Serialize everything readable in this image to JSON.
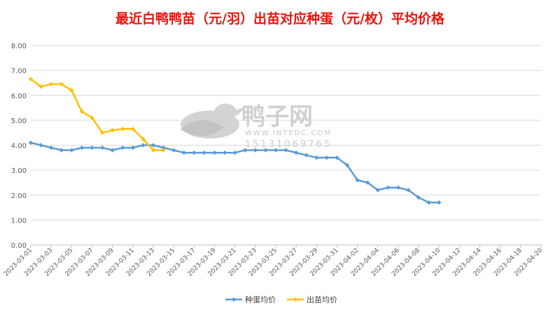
{
  "chart_data": {
    "type": "line",
    "title": "最近白鸭鸭苗（元/羽）出苗对应种蛋（元/枚）平均价格",
    "title_color": "#e8140c",
    "ylim": [
      0,
      8
    ],
    "y_ticks": [
      "0.00",
      "1.00",
      "2.00",
      "3.00",
      "4.00",
      "5.00",
      "6.00",
      "7.00",
      "8.00"
    ],
    "x_start": "2023-03-01",
    "x_end": "2023-04-20",
    "x_tick_labels": [
      "2023-03-01",
      "2023-03-03",
      "2023-03-05",
      "2023-03-07",
      "2023-03-09",
      "2023-03-11",
      "2023-03-13",
      "2023-03-15",
      "2023-03-17",
      "2023-03-19",
      "2023-03-21",
      "2023-03-23",
      "2023-03-25",
      "2023-03-27",
      "2023-03-29",
      "2023-03-31",
      "2023-04-02",
      "2023-04-04",
      "2023-04-06",
      "2023-04-08",
      "2023-04-10",
      "2023-04-12",
      "2023-04-14",
      "2023-04-16",
      "2023-04-18",
      "2023-04-20"
    ],
    "grid": true,
    "legend_position": "bottom",
    "series": [
      {
        "name": "种蛋均价",
        "color": "#5b9bd5",
        "points": [
          [
            "2023-03-01",
            4.1
          ],
          [
            "2023-03-02",
            4.0
          ],
          [
            "2023-03-03",
            3.9
          ],
          [
            "2023-03-04",
            3.8
          ],
          [
            "2023-03-05",
            3.8
          ],
          [
            "2023-03-06",
            3.9
          ],
          [
            "2023-03-07",
            3.9
          ],
          [
            "2023-03-08",
            3.9
          ],
          [
            "2023-03-09",
            3.8
          ],
          [
            "2023-03-10",
            3.9
          ],
          [
            "2023-03-11",
            3.9
          ],
          [
            "2023-03-12",
            4.0
          ],
          [
            "2023-03-13",
            4.0
          ],
          [
            "2023-03-14",
            3.9
          ],
          [
            "2023-03-15",
            3.8
          ],
          [
            "2023-03-16",
            3.7
          ],
          [
            "2023-03-17",
            3.7
          ],
          [
            "2023-03-18",
            3.7
          ],
          [
            "2023-03-19",
            3.7
          ],
          [
            "2023-03-20",
            3.7
          ],
          [
            "2023-03-21",
            3.7
          ],
          [
            "2023-03-22",
            3.8
          ],
          [
            "2023-03-23",
            3.8
          ],
          [
            "2023-03-24",
            3.8
          ],
          [
            "2023-03-25",
            3.8
          ],
          [
            "2023-03-26",
            3.8
          ],
          [
            "2023-03-27",
            3.7
          ],
          [
            "2023-03-28",
            3.6
          ],
          [
            "2023-03-29",
            3.5
          ],
          [
            "2023-03-30",
            3.5
          ],
          [
            "2023-03-31",
            3.5
          ],
          [
            "2023-04-01",
            3.2
          ],
          [
            "2023-04-02",
            2.6
          ],
          [
            "2023-04-03",
            2.5
          ],
          [
            "2023-04-04",
            2.2
          ],
          [
            "2023-04-05",
            2.3
          ],
          [
            "2023-04-06",
            2.3
          ],
          [
            "2023-04-07",
            2.2
          ],
          [
            "2023-04-08",
            1.9
          ],
          [
            "2023-04-09",
            1.7
          ],
          [
            "2023-04-10",
            1.7
          ]
        ]
      },
      {
        "name": "出苗均价",
        "color": "#ffc000",
        "points": [
          [
            "2023-03-01",
            6.65
          ],
          [
            "2023-03-02",
            6.35
          ],
          [
            "2023-03-03",
            6.45
          ],
          [
            "2023-03-04",
            6.45
          ],
          [
            "2023-03-05",
            6.2
          ],
          [
            "2023-03-06",
            5.35
          ],
          [
            "2023-03-07",
            5.1
          ],
          [
            "2023-03-08",
            4.5
          ],
          [
            "2023-03-09",
            4.6
          ],
          [
            "2023-03-10",
            4.65
          ],
          [
            "2023-03-11",
            4.65
          ],
          [
            "2023-03-12",
            4.25
          ],
          [
            "2023-03-13",
            3.8
          ],
          [
            "2023-03-14",
            3.8
          ]
        ]
      }
    ]
  },
  "watermark": {
    "brand": "鸭子网",
    "site": "WWW.INTEDC.COM",
    "phone": "15131069765",
    "color": "#c8c8c8"
  }
}
